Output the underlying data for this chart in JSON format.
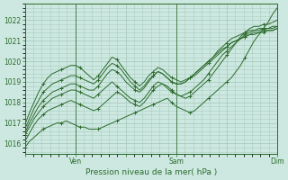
{
  "title": "Pression niveau de la mer( hPa )",
  "background_color": "#cce8e0",
  "line_color": "#2d6b2d",
  "grid_color": "#aaccc0",
  "ylim": [
    1015.5,
    1022.8
  ],
  "yticks": [
    1016,
    1017,
    1018,
    1019,
    1020,
    1021,
    1022
  ],
  "xtick_labels": [
    "",
    "Ven",
    "",
    "Sam",
    "",
    "Dim"
  ],
  "xtick_positions": [
    0,
    24,
    48,
    72,
    96,
    120
  ],
  "total_hours": 120,
  "lines": [
    [
      1015.8,
      1016.1,
      1016.3,
      1016.5,
      1016.7,
      1016.8,
      1016.9,
      1017.0,
      1017.0,
      1017.1,
      1017.0,
      1016.9,
      1016.8,
      1016.8,
      1016.7,
      1016.7,
      1016.7,
      1016.8,
      1016.9,
      1017.0,
      1017.1,
      1017.2,
      1017.3,
      1017.4,
      1017.5,
      1017.6,
      1017.7,
      1017.8,
      1017.9,
      1018.0,
      1018.1,
      1018.2,
      1018.0,
      1017.8,
      1017.7,
      1017.6,
      1017.5,
      1017.6,
      1017.8,
      1018.0,
      1018.2,
      1018.4,
      1018.6,
      1018.8,
      1019.0,
      1019.2,
      1019.5,
      1019.8,
      1020.2,
      1020.6,
      1021.0,
      1021.3,
      1021.6,
      1021.9,
      1022.3,
      1022.6
    ],
    [
      1016.1,
      1016.5,
      1016.9,
      1017.2,
      1017.4,
      1017.6,
      1017.7,
      1017.8,
      1017.9,
      1018.0,
      1018.1,
      1018.0,
      1017.9,
      1017.8,
      1017.7,
      1017.6,
      1017.7,
      1017.9,
      1018.1,
      1018.3,
      1018.5,
      1018.4,
      1018.2,
      1018.0,
      1017.9,
      1017.8,
      1018.0,
      1018.3,
      1018.6,
      1018.8,
      1018.9,
      1018.8,
      1018.6,
      1018.4,
      1018.3,
      1018.2,
      1018.3,
      1018.5,
      1018.7,
      1018.9,
      1019.1,
      1019.4,
      1019.7,
      1020.0,
      1020.3,
      1020.6,
      1020.9,
      1021.2,
      1021.4,
      1021.6,
      1021.7,
      1021.7,
      1021.8,
      1021.8,
      1021.9,
      1022.0
    ],
    [
      1016.4,
      1016.8,
      1017.2,
      1017.5,
      1017.8,
      1018.0,
      1018.2,
      1018.3,
      1018.4,
      1018.5,
      1018.6,
      1018.6,
      1018.5,
      1018.4,
      1018.3,
      1018.2,
      1018.4,
      1018.6,
      1018.8,
      1019.0,
      1018.8,
      1018.6,
      1018.4,
      1018.2,
      1018.1,
      1018.0,
      1018.2,
      1018.5,
      1018.8,
      1019.0,
      1018.9,
      1018.7,
      1018.5,
      1018.4,
      1018.3,
      1018.4,
      1018.5,
      1018.7,
      1018.9,
      1019.1,
      1019.4,
      1019.7,
      1020.0,
      1020.3,
      1020.5,
      1020.7,
      1020.9,
      1021.1,
      1021.3,
      1021.4,
      1021.5,
      1021.6,
      1021.6,
      1021.6,
      1021.7,
      1021.7
    ],
    [
      1016.5,
      1017.0,
      1017.4,
      1017.8,
      1018.1,
      1018.3,
      1018.5,
      1018.6,
      1018.7,
      1018.8,
      1018.9,
      1018.9,
      1018.8,
      1018.7,
      1018.6,
      1018.6,
      1018.8,
      1019.1,
      1019.4,
      1019.6,
      1019.5,
      1019.3,
      1019.0,
      1018.8,
      1018.6,
      1018.5,
      1018.7,
      1019.0,
      1019.3,
      1019.5,
      1019.4,
      1019.2,
      1019.0,
      1018.9,
      1018.9,
      1019.0,
      1019.2,
      1019.4,
      1019.6,
      1019.8,
      1020.0,
      1020.2,
      1020.5,
      1020.7,
      1020.9,
      1021.1,
      1021.2,
      1021.3,
      1021.4,
      1021.5,
      1021.5,
      1021.5,
      1021.6,
      1021.6,
      1021.6,
      1021.7
    ],
    [
      1016.7,
      1017.2,
      1017.7,
      1018.1,
      1018.5,
      1018.7,
      1018.9,
      1019.0,
      1019.1,
      1019.2,
      1019.3,
      1019.3,
      1019.2,
      1019.1,
      1019.0,
      1018.9,
      1019.1,
      1019.4,
      1019.7,
      1019.9,
      1019.8,
      1019.6,
      1019.3,
      1019.0,
      1018.8,
      1018.6,
      1018.8,
      1019.1,
      1019.3,
      1019.5,
      1019.4,
      1019.2,
      1019.0,
      1018.9,
      1018.9,
      1019.0,
      1019.2,
      1019.3,
      1019.5,
      1019.7,
      1019.9,
      1020.1,
      1020.3,
      1020.5,
      1020.7,
      1020.9,
      1021.0,
      1021.1,
      1021.2,
      1021.3,
      1021.4,
      1021.4,
      1021.5,
      1021.5,
      1021.5,
      1021.6
    ],
    [
      1016.9,
      1017.5,
      1018.0,
      1018.5,
      1018.9,
      1019.2,
      1019.4,
      1019.5,
      1019.6,
      1019.7,
      1019.8,
      1019.8,
      1019.7,
      1019.5,
      1019.3,
      1019.1,
      1019.3,
      1019.6,
      1019.9,
      1020.2,
      1020.1,
      1019.8,
      1019.5,
      1019.2,
      1019.0,
      1018.8,
      1019.0,
      1019.3,
      1019.5,
      1019.7,
      1019.6,
      1019.4,
      1019.2,
      1019.1,
      1019.0,
      1019.1,
      1019.2,
      1019.4,
      1019.6,
      1019.8,
      1020.0,
      1020.2,
      1020.4,
      1020.6,
      1020.7,
      1020.9,
      1021.0,
      1021.1,
      1021.2,
      1021.3,
      1021.3,
      1021.4,
      1021.4,
      1021.5,
      1021.5,
      1021.6
    ]
  ]
}
